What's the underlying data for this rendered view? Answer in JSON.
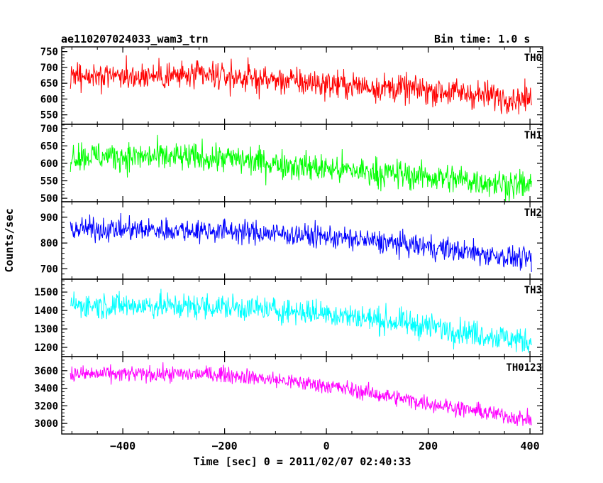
{
  "header": {
    "title": "ae110207024033_wam3_trn",
    "bin_time": "Bin time: 1.0 s"
  },
  "chart_data": {
    "type": "line",
    "title": "ae110207024033_wam3_trn",
    "subtitle": "Bin time: 1.0 s",
    "xlabel": "Time [sec] 0 = 2011/02/07 02:40:33",
    "ylabel": "Counts/sec",
    "xlim": [
      -520,
      425
    ],
    "x_ticks": [
      -400,
      -200,
      0,
      200,
      400
    ],
    "x_tick_labels": [
      "−400",
      "−200",
      "0",
      "200",
      "400"
    ],
    "grid": false,
    "x_range": [
      -503,
      403
    ],
    "panels": [
      {
        "name": "TH0",
        "color": "#ff0000",
        "ylim": [
          520,
          765
        ],
        "yticks": [
          550,
          600,
          650,
          700,
          750
        ],
        "trend": [
          [
            -503,
            675
          ],
          [
            -200,
            672
          ],
          [
            0,
            648
          ],
          [
            200,
            628
          ],
          [
            403,
            598
          ]
        ],
        "noise": 32
      },
      {
        "name": "TH1",
        "color": "#00ff00",
        "ylim": [
          490,
          712
        ],
        "yticks": [
          500,
          550,
          600,
          650,
          700
        ],
        "trend": [
          [
            -503,
            622
          ],
          [
            -200,
            615
          ],
          [
            0,
            585
          ],
          [
            200,
            562
          ],
          [
            403,
            535
          ]
        ],
        "noise": 30
      },
      {
        "name": "TH2",
        "color": "#0000ff",
        "ylim": [
          660,
          960
        ],
        "yticks": [
          700,
          800,
          900
        ],
        "trend": [
          [
            -503,
            855
          ],
          [
            -200,
            848
          ],
          [
            0,
            825
          ],
          [
            200,
            785
          ],
          [
            403,
            735
          ]
        ],
        "noise": 32
      },
      {
        "name": "TH3",
        "color": "#00ffff",
        "ylim": [
          1150,
          1570
        ],
        "yticks": [
          1200,
          1300,
          1400,
          1500
        ],
        "trend": [
          [
            -503,
            1430
          ],
          [
            -200,
            1420
          ],
          [
            0,
            1385
          ],
          [
            200,
            1315
          ],
          [
            403,
            1230
          ]
        ],
        "noise": 50
      },
      {
        "name": "TH0123",
        "color": "#ff00ff",
        "ylim": [
          2880,
          3760
        ],
        "yticks": [
          3000,
          3200,
          3400,
          3600
        ],
        "trend": [
          [
            -503,
            3560
          ],
          [
            -200,
            3560
          ],
          [
            0,
            3430
          ],
          [
            200,
            3230
          ],
          [
            403,
            3040
          ]
        ],
        "noise": 65
      }
    ]
  }
}
